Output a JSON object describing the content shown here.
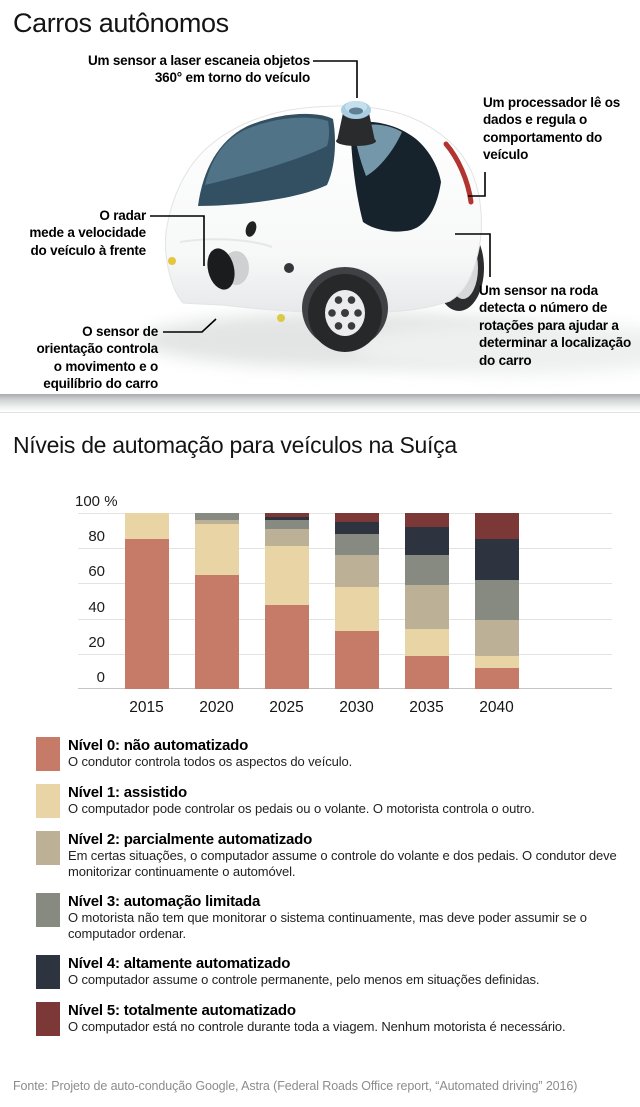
{
  "header": {
    "title": "Carros autônomos"
  },
  "car_diagram": {
    "annotations": [
      {
        "id": "laser-sensor",
        "text": "Um sensor a laser escaneia objetos\n360° em torno do veículo"
      },
      {
        "id": "processor",
        "text": "Um processador lê os\ndados e regula o\ncomportamento do\nveículo"
      },
      {
        "id": "radar",
        "text": "O radar\nmede a velocidade\ndo veículo à frente"
      },
      {
        "id": "orientation-sensor",
        "text": "O sensor de\norientação controla\no movimento e o\nequilíbrio do carro"
      },
      {
        "id": "wheel-sensor",
        "text": "Um sensor na roda\ndetecta o número de\nrotações para ajudar a\ndeterminar a localização\ndo carro"
      }
    ]
  },
  "section2": {
    "title": "Níveis de automação para veículos na Suíça"
  },
  "chart_data": {
    "type": "bar",
    "stacked": true,
    "title": "Níveis de automação para veículos na Suíça",
    "unit": "%",
    "ylim": [
      0,
      100
    ],
    "yticks": [
      0,
      20,
      40,
      60,
      80,
      100
    ],
    "ytick_top_label": "100 %",
    "grid": true,
    "legend_position": "below",
    "categories": [
      "2015",
      "2020",
      "2025",
      "2030",
      "2035",
      "2040"
    ],
    "series": [
      {
        "name": "Nível 0: não automatizado",
        "color": "#c57b68",
        "values": [
          85,
          65,
          48,
          33,
          19,
          12
        ]
      },
      {
        "name": "Nível 1: assistido",
        "color": "#e8d4a5",
        "values": [
          15,
          29,
          33,
          25,
          15,
          7
        ]
      },
      {
        "name": "Nível 2: parcialmente automatizado",
        "color": "#bcb096",
        "values": [
          0,
          2,
          10,
          18,
          25,
          20
        ]
      },
      {
        "name": "Nível 3: automação limitada",
        "color": "#868a80",
        "values": [
          0,
          4,
          5,
          12,
          17,
          23
        ]
      },
      {
        "name": "Nível 4: altamente automatizado",
        "color": "#2d3440",
        "values": [
          0,
          0,
          2,
          7,
          16,
          23
        ]
      },
      {
        "name": "Nível 5: totalmente automatizado",
        "color": "#7c3836",
        "values": [
          0,
          0,
          2,
          5,
          8,
          15
        ]
      }
    ]
  },
  "legend": {
    "items": [
      {
        "title": "Nível 0: não automatizado",
        "desc": "O condutor controla todos os aspectos do veículo.",
        "color": "#c57b68"
      },
      {
        "title": "Nível 1: assistido",
        "desc": "O computador pode controlar os pedais ou o volante. O motorista controla o outro.",
        "color": "#e8d4a5"
      },
      {
        "title": "Nível 2: parcialmente automatizado",
        "desc": "Em certas situações, o computador assume o controle do volante e dos pedais. O condutor deve monitorizar continuamente o automóvel.",
        "color": "#bcb096"
      },
      {
        "title": "Nível 3: automação limitada",
        "desc": "O motorista não tem que monitorar o sistema continuamente, mas deve poder assumir se o computador ordenar.",
        "color": "#868a80"
      },
      {
        "title": "Nível 4: altamente automatizado",
        "desc": "O computador assume o controle permanente, pelo menos em situações definidas.",
        "color": "#2d3440"
      },
      {
        "title": "Nível 5: totalmente automatizado",
        "desc": "O computador está no controle durante toda a viagem. Nenhum motorista é necessário.",
        "color": "#7c3836"
      }
    ]
  },
  "footer": {
    "source": "Fonte: Projeto de auto-condução Google, Astra (Federal Roads Office report, “Automated driving” 2016)"
  }
}
